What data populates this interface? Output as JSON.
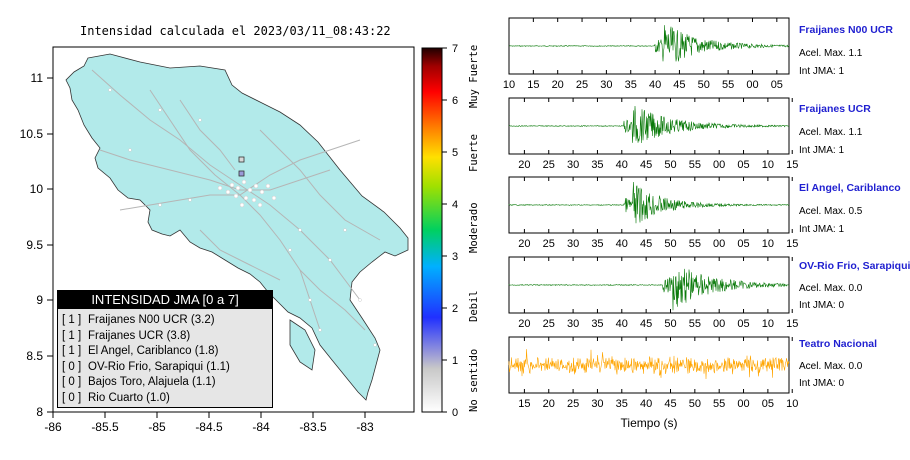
{
  "map": {
    "title": "Intensidad calculada el 2023/03/11_08:43:22",
    "lon_ticks": [
      "-86",
      "-85.5",
      "-85",
      "-84.5",
      "-84",
      "-83.5",
      "-83"
    ],
    "lat_ticks": [
      "11",
      "10.5",
      "10",
      "9.5",
      "9",
      "8.5",
      "8"
    ],
    "land_color": "#b2eaea",
    "road_color": "#b5b5b5"
  },
  "colorbar": {
    "ticks": [
      "0",
      "1",
      "2",
      "3",
      "4",
      "5",
      "6",
      "7"
    ],
    "labels": [
      "No sentido",
      "Debil",
      "Moderado",
      "Fuerte",
      "Muy Fuerte"
    ]
  },
  "legend": {
    "title": "INTENSIDAD JMA [0 a 7]",
    "items": [
      {
        "level": "[ 1 ]",
        "station": "Fraijanes N00 UCR (3.2)"
      },
      {
        "level": "[ 1 ]",
        "station": "Fraijanes UCR (3.8)"
      },
      {
        "level": "[ 1 ]",
        "station": "El Angel, Cariblanco (1.8)"
      },
      {
        "level": "[ 0 ]",
        "station": "OV-Rio Frio, Sarapiqui (1.1)"
      },
      {
        "level": "[ 0 ]",
        "station": "Bajos Toro, Alajuela (1.1)"
      },
      {
        "level": "[ 0 ]",
        "station": "Rio Cuarto (1.0)"
      }
    ]
  },
  "waveforms": [
    {
      "name": "Fraijanes N00 UCR",
      "acel": "Acel. Max. 1.1",
      "int": "Int JMA: 1",
      "ticks": [
        "10",
        "15",
        "20",
        "25",
        "30",
        "35",
        "40",
        "45",
        "50",
        "55",
        "00",
        "05"
      ],
      "color": "#0a7a0a"
    },
    {
      "name": "Fraijanes UCR",
      "acel": "Acel. Max. 1.1",
      "int": "Int JMA: 1",
      "ticks": [
        "20",
        "25",
        "30",
        "35",
        "40",
        "45",
        "50",
        "55",
        "00",
        "05",
        "10",
        "15"
      ],
      "color": "#0a7a0a"
    },
    {
      "name": "El Angel, Cariblanco",
      "acel": "Acel. Max. 0.5",
      "int": "Int JMA: 1",
      "ticks": [
        "20",
        "25",
        "30",
        "35",
        "40",
        "45",
        "50",
        "55",
        "00",
        "05",
        "10",
        "15"
      ],
      "color": "#0a7a0a"
    },
    {
      "name": "OV-Rio Frio, Sarapiqui",
      "acel": "Acel. Max. 0.0",
      "int": "Int JMA: 0",
      "ticks": [
        "20",
        "25",
        "30",
        "35",
        "40",
        "45",
        "50",
        "55",
        "00",
        "05",
        "10",
        "15"
      ],
      "color": "#0a7a0a"
    },
    {
      "name": "Teatro Nacional",
      "acel": "Acel. Max. 0.0",
      "int": "Int JMA: 0",
      "ticks": [
        "15",
        "20",
        "25",
        "30",
        "35",
        "40",
        "45",
        "50",
        "55",
        "00",
        "05",
        "10"
      ],
      "color": "#ffa500"
    }
  ],
  "xlabel": "Tiempo (s)"
}
